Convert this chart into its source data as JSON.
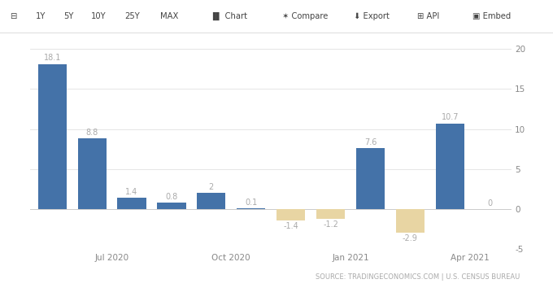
{
  "bars": [
    {
      "x": 0,
      "value": 18.1,
      "color": "#4472a8",
      "label": "18.1"
    },
    {
      "x": 1,
      "value": 8.8,
      "color": "#4472a8",
      "label": "8.8"
    },
    {
      "x": 2,
      "value": 1.4,
      "color": "#4472a8",
      "label": "1.4"
    },
    {
      "x": 3,
      "value": 0.8,
      "color": "#4472a8",
      "label": "0.8"
    },
    {
      "x": 4,
      "value": 2.0,
      "color": "#4472a8",
      "label": "2"
    },
    {
      "x": 5,
      "value": 0.1,
      "color": "#4472a8",
      "label": "0.1"
    },
    {
      "x": 6,
      "value": -1.4,
      "color": "#e8d5a3",
      "label": "-1.4"
    },
    {
      "x": 7,
      "value": -1.2,
      "color": "#e8d5a3",
      "label": "-1.2"
    },
    {
      "x": 8,
      "value": 7.6,
      "color": "#4472a8",
      "label": "7.6"
    },
    {
      "x": 9,
      "value": -2.9,
      "color": "#e8d5a3",
      "label": "-2.9"
    },
    {
      "x": 10,
      "value": 10.7,
      "color": "#4472a8",
      "label": "10.7"
    },
    {
      "x": 11,
      "value": 0.0,
      "color": "#4472a8",
      "label": "0"
    }
  ],
  "x_tick_positions": [
    1.5,
    4.5,
    7.5,
    10.5
  ],
  "x_tick_labels": [
    "Jul 2020",
    "Oct 2020",
    "Jan 2021",
    "Apr 2021"
  ],
  "ylim": [
    -5,
    20
  ],
  "yticks": [
    -5,
    0,
    5,
    10,
    15,
    20
  ],
  "bar_width": 0.72,
  "label_color": "#aaaaaa",
  "label_fontsize": 7.0,
  "tick_fontsize": 7.5,
  "source_text": "SOURCE: TRADINGECONOMICS.COM | U.S. CENSUS BUREAU",
  "source_fontsize": 6.0,
  "bg_color": "#ffffff",
  "plot_bg_color": "#ffffff",
  "grid_color": "#e0e0e0",
  "toolbar_bg": "#f5f5f5",
  "toolbar_border": "#dddddd"
}
